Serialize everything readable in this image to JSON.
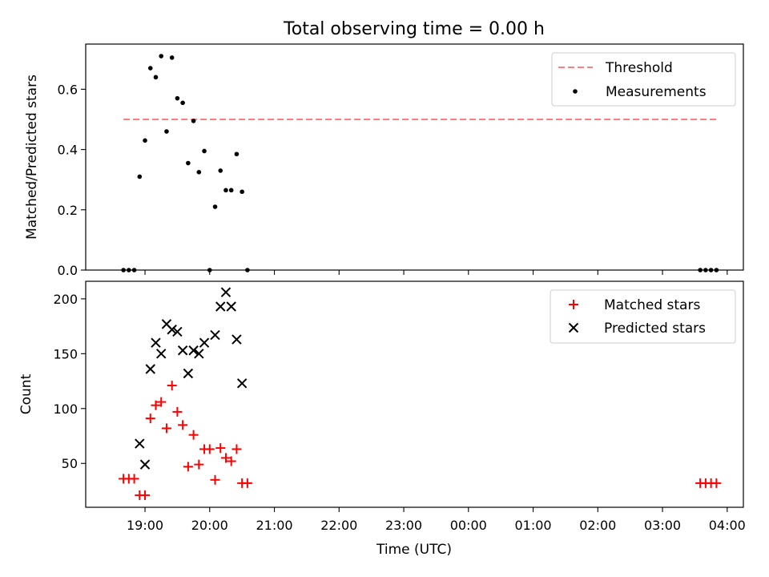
{
  "title": "Total observing time = 0.00 h",
  "colors": {
    "threshold": "#ff7f7f",
    "measurement": "#000000",
    "matched": "#ff0000",
    "predicted": "#000000"
  },
  "chart_data": [
    {
      "type": "scatter",
      "ylabel": "Matched/Predicted stars",
      "xlim": [
        "18:05",
        "04:15"
      ],
      "ylim": [
        0,
        0.75
      ],
      "yticks": [
        0.0,
        0.2,
        0.4,
        0.6
      ],
      "ytick_labels": [
        "0.0",
        "0.2",
        "0.4",
        "0.6"
      ],
      "legend_position": "top-right",
      "threshold": {
        "name": "Threshold",
        "y": 0.5,
        "x_start": "18:40",
        "x_end": "03:50"
      },
      "series": [
        {
          "name": "Measurements",
          "marker": "dot",
          "points": [
            [
              "18:40",
              0.0
            ],
            [
              "18:45",
              0.0
            ],
            [
              "18:50",
              0.0
            ],
            [
              "18:55",
              0.31
            ],
            [
              "19:00",
              0.43
            ],
            [
              "19:05",
              0.67
            ],
            [
              "19:10",
              0.64
            ],
            [
              "19:15",
              0.71
            ],
            [
              "19:20",
              0.46
            ],
            [
              "19:25",
              0.705
            ],
            [
              "19:30",
              0.57
            ],
            [
              "19:35",
              0.555
            ],
            [
              "19:40",
              0.355
            ],
            [
              "19:45",
              0.495
            ],
            [
              "19:50",
              0.325
            ],
            [
              "19:55",
              0.395
            ],
            [
              "20:00",
              0.0
            ],
            [
              "20:05",
              0.21
            ],
            [
              "20:10",
              0.33
            ],
            [
              "20:15",
              0.265
            ],
            [
              "20:20",
              0.265
            ],
            [
              "20:25",
              0.385
            ],
            [
              "20:30",
              0.26
            ],
            [
              "20:35",
              0.0
            ],
            [
              "03:35",
              0.0
            ],
            [
              "03:40",
              0.0
            ],
            [
              "03:45",
              0.0
            ],
            [
              "03:50",
              0.0
            ]
          ]
        }
      ]
    },
    {
      "type": "scatter",
      "xlabel": "Time (UTC)",
      "ylabel": "Count",
      "xlim": [
        "18:05",
        "04:15"
      ],
      "ylim": [
        10,
        216
      ],
      "yticks": [
        50,
        100,
        150,
        200
      ],
      "ytick_labels": [
        "50",
        "100",
        "150",
        "200"
      ],
      "xtick_labels": [
        "19:00",
        "20:00",
        "21:00",
        "22:00",
        "23:00",
        "00:00",
        "01:00",
        "02:00",
        "03:00",
        "04:00"
      ],
      "legend_position": "top-right",
      "series": [
        {
          "name": "Matched stars",
          "marker": "plus",
          "points": [
            [
              "18:40",
              36
            ],
            [
              "18:45",
              36
            ],
            [
              "18:50",
              36
            ],
            [
              "18:55",
              21
            ],
            [
              "19:00",
              21
            ],
            [
              "19:05",
              91
            ],
            [
              "19:10",
              103
            ],
            [
              "19:15",
              106
            ],
            [
              "19:20",
              82
            ],
            [
              "19:25",
              121
            ],
            [
              "19:30",
              97
            ],
            [
              "19:35",
              85
            ],
            [
              "19:40",
              47
            ],
            [
              "19:45",
              76
            ],
            [
              "19:50",
              49
            ],
            [
              "19:55",
              63
            ],
            [
              "20:00",
              63
            ],
            [
              "20:05",
              35
            ],
            [
              "20:10",
              64
            ],
            [
              "20:15",
              55
            ],
            [
              "20:20",
              52
            ],
            [
              "20:25",
              63
            ],
            [
              "20:30",
              32
            ],
            [
              "20:35",
              32
            ],
            [
              "03:35",
              32
            ],
            [
              "03:40",
              32
            ],
            [
              "03:45",
              32
            ],
            [
              "03:50",
              32
            ]
          ]
        },
        {
          "name": "Predicted stars",
          "marker": "x",
          "points": [
            [
              "18:55",
              68
            ],
            [
              "19:00",
              49
            ],
            [
              "19:05",
              136
            ],
            [
              "19:10",
              160
            ],
            [
              "19:15",
              150
            ],
            [
              "19:20",
              177
            ],
            [
              "19:25",
              172
            ],
            [
              "19:30",
              170
            ],
            [
              "19:35",
              153
            ],
            [
              "19:40",
              132
            ],
            [
              "19:45",
              153
            ],
            [
              "19:50",
              150
            ],
            [
              "19:55",
              160
            ],
            [
              "20:05",
              167
            ],
            [
              "20:10",
              193
            ],
            [
              "20:15",
              206
            ],
            [
              "20:20",
              193
            ],
            [
              "20:25",
              163
            ],
            [
              "20:30",
              123
            ]
          ]
        }
      ]
    }
  ]
}
